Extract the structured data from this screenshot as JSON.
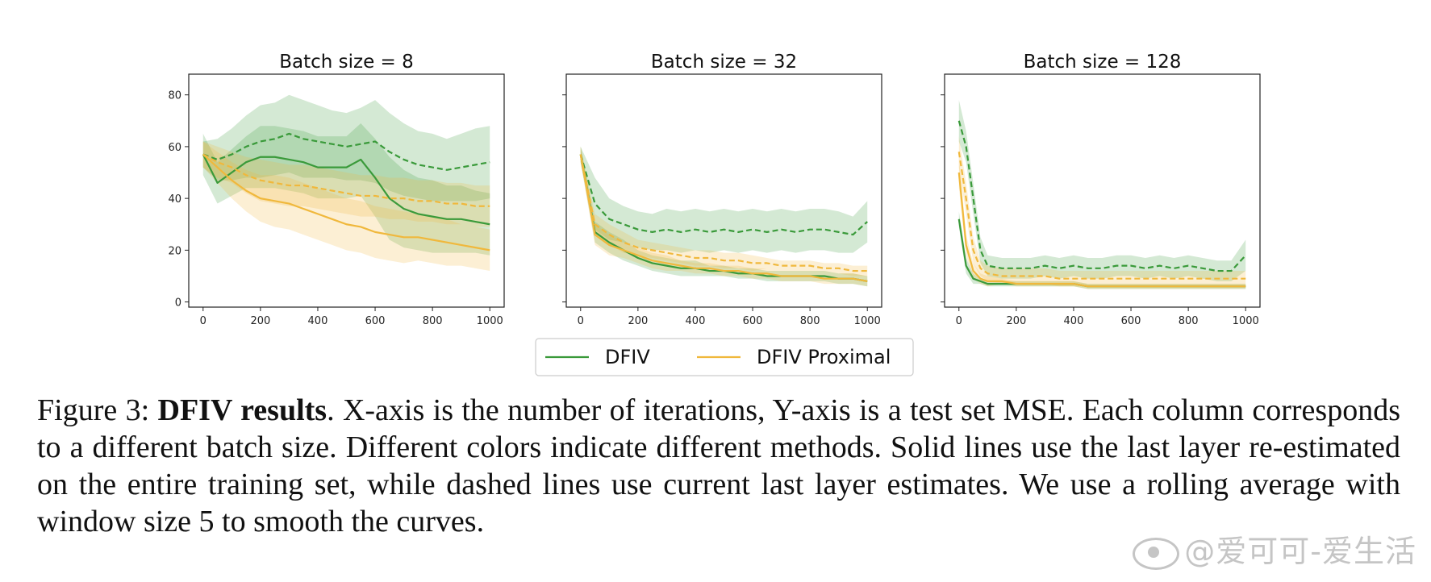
{
  "chart_data": [
    {
      "type": "line",
      "title": "Batch size = 8",
      "xlim": [
        -50,
        1050
      ],
      "ylim": [
        -2,
        88
      ],
      "xticks": [
        0,
        200,
        400,
        600,
        800,
        1000
      ],
      "yticks": [
        0,
        20,
        40,
        60,
        80
      ],
      "x": [
        0,
        50,
        100,
        150,
        200,
        250,
        300,
        350,
        400,
        450,
        500,
        550,
        600,
        650,
        700,
        750,
        800,
        850,
        900,
        950,
        1000
      ],
      "series": [
        {
          "name": "DFIV",
          "style": "solid",
          "color": "#3a9a3a",
          "values": [
            57,
            46,
            50,
            54,
            56,
            56,
            55,
            54,
            52,
            52,
            52,
            55,
            48,
            40,
            36,
            34,
            33,
            32,
            32,
            31,
            30
          ],
          "band": [
            8,
            8,
            9,
            10,
            12,
            12,
            12,
            12,
            12,
            12,
            12,
            14,
            15,
            16,
            15,
            14,
            14,
            13,
            13,
            12,
            12
          ]
        },
        {
          "name": "DFIV",
          "style": "dashed",
          "color": "#3a9a3a",
          "values": [
            57,
            55,
            57,
            60,
            62,
            63,
            65,
            63,
            62,
            61,
            60,
            61,
            62,
            58,
            55,
            53,
            52,
            51,
            52,
            53,
            54
          ],
          "band": [
            5,
            8,
            10,
            12,
            14,
            14,
            15,
            15,
            14,
            13,
            13,
            14,
            16,
            15,
            14,
            13,
            13,
            12,
            13,
            14,
            14
          ]
        },
        {
          "name": "DFIV Proximal",
          "style": "solid",
          "color": "#f0b83c",
          "values": [
            57,
            52,
            47,
            43,
            40,
            39,
            38,
            36,
            34,
            32,
            30,
            29,
            27,
            26,
            25,
            25,
            24,
            23,
            22,
            21,
            20
          ],
          "band": [
            5,
            6,
            7,
            8,
            9,
            10,
            10,
            10,
            10,
            10,
            10,
            10,
            10,
            10,
            10,
            9,
            9,
            9,
            8,
            8,
            8
          ]
        },
        {
          "name": "DFIV Proximal",
          "style": "dashed",
          "color": "#f0b83c",
          "values": [
            57,
            54,
            52,
            49,
            47,
            46,
            45,
            45,
            44,
            43,
            42,
            41,
            41,
            40,
            40,
            39,
            39,
            38,
            38,
            37,
            37
          ],
          "band": [
            5,
            6,
            6,
            7,
            8,
            8,
            8,
            8,
            8,
            8,
            8,
            8,
            8,
            8,
            8,
            8,
            8,
            8,
            8,
            8,
            8
          ]
        }
      ]
    },
    {
      "type": "line",
      "title": "Batch size = 32",
      "xlim": [
        -50,
        1050
      ],
      "ylim": [
        -2,
        88
      ],
      "xticks": [
        0,
        200,
        400,
        600,
        800,
        1000
      ],
      "yticks": [],
      "x": [
        0,
        50,
        100,
        150,
        200,
        250,
        300,
        350,
        400,
        450,
        500,
        550,
        600,
        650,
        700,
        750,
        800,
        850,
        900,
        950,
        1000
      ],
      "series": [
        {
          "name": "DFIV",
          "style": "solid",
          "color": "#3a9a3a",
          "values": [
            57,
            27,
            23,
            20,
            17,
            15,
            14,
            13,
            13,
            12,
            12,
            11,
            11,
            10,
            10,
            10,
            10,
            10,
            9,
            9,
            8
          ],
          "band": [
            3,
            4,
            4,
            4,
            3,
            3,
            3,
            3,
            3,
            2,
            2,
            2,
            2,
            2,
            2,
            2,
            2,
            2,
            2,
            2,
            2
          ]
        },
        {
          "name": "DFIV",
          "style": "dashed",
          "color": "#3a9a3a",
          "values": [
            57,
            38,
            32,
            30,
            28,
            27,
            28,
            27,
            28,
            27,
            28,
            27,
            28,
            27,
            28,
            27,
            28,
            28,
            27,
            26,
            31
          ],
          "band": [
            3,
            10,
            8,
            7,
            7,
            7,
            8,
            8,
            8,
            8,
            8,
            8,
            8,
            8,
            8,
            8,
            8,
            8,
            8,
            7,
            8
          ]
        },
        {
          "name": "DFIV Proximal",
          "style": "solid",
          "color": "#f0b83c",
          "values": [
            57,
            26,
            22,
            20,
            18,
            16,
            15,
            14,
            13,
            13,
            12,
            12,
            11,
            11,
            10,
            10,
            10,
            9,
            9,
            9,
            8
          ],
          "band": [
            3,
            4,
            4,
            3,
            3,
            3,
            3,
            2,
            2,
            2,
            2,
            2,
            2,
            2,
            2,
            2,
            2,
            2,
            2,
            2,
            2
          ]
        },
        {
          "name": "DFIV Proximal",
          "style": "dashed",
          "color": "#f0b83c",
          "values": [
            57,
            30,
            26,
            23,
            21,
            20,
            19,
            18,
            17,
            17,
            16,
            16,
            15,
            15,
            14,
            14,
            14,
            13,
            13,
            12,
            12
          ],
          "band": [
            3,
            4,
            4,
            4,
            3,
            3,
            3,
            3,
            3,
            3,
            3,
            3,
            3,
            2,
            2,
            2,
            2,
            2,
            2,
            2,
            2
          ]
        }
      ]
    },
    {
      "type": "line",
      "title": "Batch size = 128",
      "xlim": [
        -50,
        1050
      ],
      "ylim": [
        -2,
        88
      ],
      "xticks": [
        0,
        200,
        400,
        600,
        800,
        1000
      ],
      "yticks": [],
      "x": [
        0,
        25,
        50,
        75,
        100,
        150,
        200,
        250,
        300,
        350,
        400,
        450,
        500,
        550,
        600,
        650,
        700,
        750,
        800,
        850,
        900,
        950,
        1000
      ],
      "series": [
        {
          "name": "DFIV",
          "style": "solid",
          "color": "#3a9a3a",
          "values": [
            32,
            14,
            9,
            8,
            7,
            7,
            7,
            7,
            7,
            7,
            7,
            6,
            6,
            6,
            6,
            6,
            6,
            6,
            6,
            6,
            6,
            6,
            6
          ],
          "band": [
            3,
            3,
            2,
            1,
            1,
            1,
            1,
            1,
            1,
            1,
            1,
            1,
            1,
            1,
            1,
            1,
            1,
            1,
            1,
            1,
            1,
            1,
            1
          ]
        },
        {
          "name": "DFIV",
          "style": "dashed",
          "color": "#3a9a3a",
          "values": [
            70,
            60,
            40,
            20,
            14,
            13,
            13,
            13,
            14,
            13,
            14,
            13,
            13,
            14,
            14,
            13,
            14,
            13,
            14,
            13,
            12,
            12,
            18
          ],
          "band": [
            8,
            6,
            6,
            5,
            4,
            4,
            4,
            4,
            4,
            4,
            4,
            4,
            4,
            4,
            4,
            4,
            4,
            4,
            4,
            4,
            4,
            4,
            6
          ]
        },
        {
          "name": "DFIV Proximal",
          "style": "solid",
          "color": "#f0b83c",
          "values": [
            50,
            22,
            12,
            9,
            8,
            8,
            7,
            7,
            7,
            7,
            7,
            6,
            6,
            6,
            6,
            6,
            6,
            6,
            6,
            6,
            6,
            6,
            6
          ],
          "band": [
            6,
            4,
            3,
            2,
            2,
            1,
            1,
            1,
            1,
            1,
            1,
            1,
            1,
            1,
            1,
            1,
            1,
            1,
            1,
            1,
            1,
            1,
            1
          ]
        },
        {
          "name": "DFIV Proximal",
          "style": "dashed",
          "color": "#f0b83c",
          "values": [
            58,
            40,
            20,
            13,
            11,
            10,
            10,
            10,
            10,
            9,
            9,
            9,
            9,
            9,
            9,
            9,
            9,
            9,
            9,
            9,
            9,
            9,
            9
          ],
          "band": [
            6,
            6,
            5,
            3,
            3,
            3,
            3,
            3,
            3,
            3,
            3,
            3,
            3,
            3,
            3,
            3,
            3,
            3,
            3,
            3,
            3,
            3,
            3
          ]
        }
      ]
    }
  ],
  "legend": {
    "location": "bottom-center",
    "items": [
      {
        "label": "DFIV",
        "color": "#3a9a3a"
      },
      {
        "label": "DFIV Proximal",
        "color": "#f0b83c"
      }
    ]
  },
  "caption": {
    "label": "Figure 3: ",
    "bold": "DFIV results",
    "text": ". X-axis is the number of iterations, Y-axis is a test set MSE. Each column corresponds to a different batch size. Different colors indicate different methods. Solid lines use the last layer re-estimated on the entire training set, while dashed lines use current last layer estimates. We use a rolling average with window size 5 to smooth the curves."
  },
  "watermark": "@爱可可-爱生活"
}
